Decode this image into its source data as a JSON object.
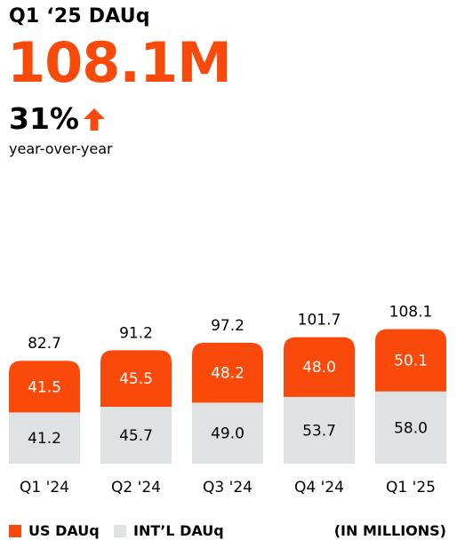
{
  "header": {
    "title": "Q1 ‘25 DAUq",
    "headline_value": "108.1M",
    "growth": "31%",
    "growth_label": "year-over-year",
    "arrow_icon": "arrow-up-icon"
  },
  "colors": {
    "us": "#fa4a0b",
    "intl": "#dfe1e3",
    "text": "#000000"
  },
  "chart_data": {
    "type": "bar",
    "stacked": true,
    "categories": [
      "Q1 '24",
      "Q2 '24",
      "Q3 '24",
      "Q4 '24",
      "Q1 '25"
    ],
    "series": [
      {
        "name": "INT’L DAUq",
        "values": [
          41.2,
          45.7,
          49.0,
          53.7,
          58.0
        ]
      },
      {
        "name": "US DAUq",
        "values": [
          41.5,
          45.5,
          48.2,
          48.0,
          50.1
        ]
      }
    ],
    "value_labels": {
      "intl": [
        "41.2",
        "45.7",
        "49.0",
        "53.7",
        "58.0"
      ],
      "us": [
        "41.5",
        "45.5",
        "48.2",
        "48.0",
        "50.1"
      ],
      "totals": [
        "82.7",
        "91.2",
        "97.2",
        "101.7",
        "108.1"
      ]
    },
    "totals": [
      82.7,
      91.2,
      97.2,
      101.7,
      108.1
    ],
    "legend_position": "bottom"
  },
  "legend": {
    "us_label": "US DAUq",
    "intl_label": "INT’L DAUq",
    "units_label": "(IN MILLIONS)"
  }
}
